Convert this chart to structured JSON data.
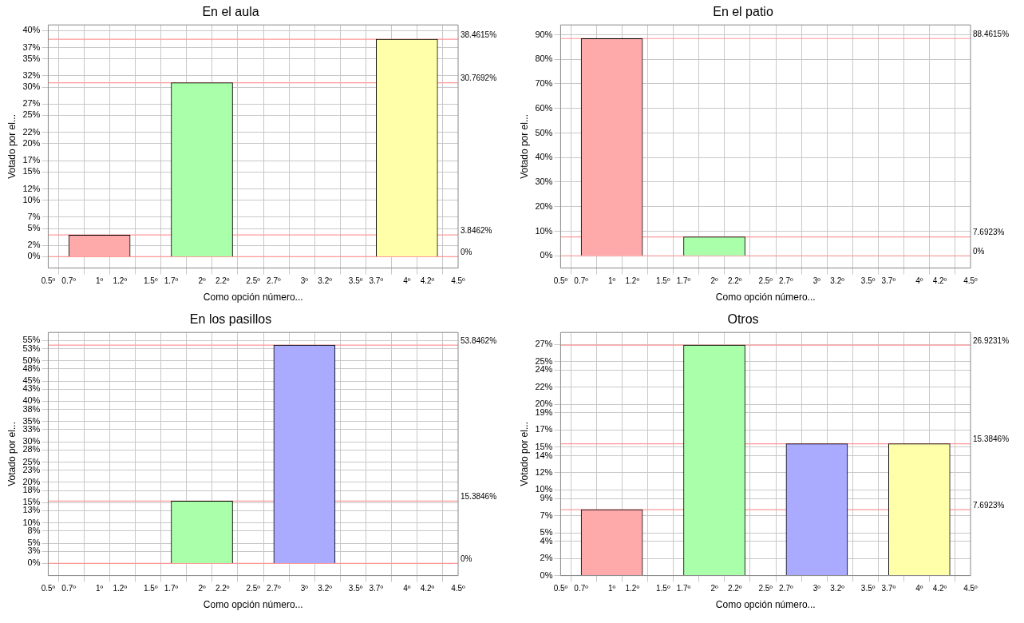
{
  "chart_data": [
    {
      "type": "bar",
      "title": "En el aula",
      "xlabel": "Como opción número...",
      "ylabel": "Votado por el...",
      "x": [
        1,
        2,
        3,
        4
      ],
      "values": [
        3.8462,
        30.7692,
        0,
        38.4615
      ],
      "colors": [
        "#ffaaaa",
        "#aaffaa",
        "#aaaaff",
        "#ffffaa"
      ],
      "xlim": [
        0.5,
        4.5
      ],
      "xticks": [
        {
          "value": 0.5,
          "label": "0.5º"
        },
        {
          "value": 0.7,
          "label": "0.7º"
        },
        {
          "value": 1,
          "label": "1º"
        },
        {
          "value": 1.2,
          "label": "1.2º"
        },
        {
          "value": 1.5,
          "label": "1.5º"
        },
        {
          "value": 1.7,
          "label": "1.7º"
        },
        {
          "value": 2,
          "label": "2º"
        },
        {
          "value": 2.2,
          "label": "2.2º"
        },
        {
          "value": 2.5,
          "label": "2.5º"
        },
        {
          "value": 2.7,
          "label": "2.7º"
        },
        {
          "value": 3,
          "label": "3º"
        },
        {
          "value": 3.2,
          "label": "3.2º"
        },
        {
          "value": 3.5,
          "label": "3.5º"
        },
        {
          "value": 3.7,
          "label": "3.7º"
        },
        {
          "value": 4,
          "label": "4º"
        },
        {
          "value": 4.2,
          "label": "4.2º"
        },
        {
          "value": 4.5,
          "label": "4.5º"
        }
      ],
      "ylim": [
        -2,
        41
      ],
      "yticks": [
        {
          "value": 0,
          "label": "0%"
        },
        {
          "value": 2,
          "label": "2%"
        },
        {
          "value": 5,
          "label": "5%"
        },
        {
          "value": 7,
          "label": "7%"
        },
        {
          "value": 10,
          "label": "10%"
        },
        {
          "value": 12,
          "label": "12%"
        },
        {
          "value": 15,
          "label": "15%"
        },
        {
          "value": 17,
          "label": "17%"
        },
        {
          "value": 20,
          "label": "20%"
        },
        {
          "value": 22,
          "label": "22%"
        },
        {
          "value": 25,
          "label": "25%"
        },
        {
          "value": 27,
          "label": "27%"
        },
        {
          "value": 30,
          "label": "30%"
        },
        {
          "value": 32,
          "label": "32%"
        },
        {
          "value": 35,
          "label": "35%"
        },
        {
          "value": 37,
          "label": "37%"
        },
        {
          "value": 40,
          "label": "40%"
        }
      ],
      "ref_lines": [
        {
          "axis": "y",
          "value": 38.4615,
          "label": "38.4615%",
          "color": "#ff9999"
        },
        {
          "axis": "y",
          "value": 30.7692,
          "label": "30.7692%",
          "color": "#ff9999"
        },
        {
          "axis": "y",
          "value": 3.8462,
          "label": "3.8462%",
          "color": "#ff9999"
        },
        {
          "axis": "y",
          "value": 0,
          "label": "0%",
          "color": "#ff9999"
        }
      ],
      "grid": true
    },
    {
      "type": "bar",
      "title": "En el patio",
      "xlabel": "Como opción número...",
      "ylabel": "Votado por el...",
      "x": [
        1,
        2,
        3,
        4
      ],
      "values": [
        88.4615,
        7.6923,
        0,
        0
      ],
      "colors": [
        "#ffaaaa",
        "#aaffaa",
        "#aaaaff",
        "#ffffaa"
      ],
      "xlim": [
        0.5,
        4.5
      ],
      "xticks": [
        {
          "value": 0.5,
          "label": "0.5º"
        },
        {
          "value": 0.7,
          "label": "0.7º"
        },
        {
          "value": 1,
          "label": "1º"
        },
        {
          "value": 1.2,
          "label": "1.2º"
        },
        {
          "value": 1.5,
          "label": "1.5º"
        },
        {
          "value": 1.7,
          "label": "1.7º"
        },
        {
          "value": 2,
          "label": "2º"
        },
        {
          "value": 2.2,
          "label": "2.2º"
        },
        {
          "value": 2.5,
          "label": "2.5º"
        },
        {
          "value": 2.7,
          "label": "2.7º"
        },
        {
          "value": 3,
          "label": "3º"
        },
        {
          "value": 3.2,
          "label": "3.2º"
        },
        {
          "value": 3.5,
          "label": "3.5º"
        },
        {
          "value": 3.7,
          "label": "3.7º"
        },
        {
          "value": 4,
          "label": "4º"
        },
        {
          "value": 4.2,
          "label": "4.2º"
        },
        {
          "value": 4.5,
          "label": "4.5º"
        }
      ],
      "ylim": [
        -5,
        94
      ],
      "yticks": [
        {
          "value": 0,
          "label": "0%"
        },
        {
          "value": 10,
          "label": "10%"
        },
        {
          "value": 20,
          "label": "20%"
        },
        {
          "value": 30,
          "label": "30%"
        },
        {
          "value": 40,
          "label": "40%"
        },
        {
          "value": 50,
          "label": "50%"
        },
        {
          "value": 60,
          "label": "60%"
        },
        {
          "value": 70,
          "label": "70%"
        },
        {
          "value": 80,
          "label": "80%"
        },
        {
          "value": 90,
          "label": "90%"
        }
      ],
      "ref_lines": [
        {
          "axis": "y",
          "value": 88.4615,
          "label": "88.4615%",
          "color": "#ff9999"
        },
        {
          "axis": "y",
          "value": 7.6923,
          "label": "7.6923%",
          "color": "#ff9999"
        },
        {
          "axis": "y",
          "value": 0,
          "label": "0%",
          "color": "#ff9999"
        }
      ],
      "grid": true
    },
    {
      "type": "bar",
      "title": "En los pasillos",
      "xlabel": "Como opción número...",
      "ylabel": "Votado por el...",
      "x": [
        1,
        2,
        3,
        4
      ],
      "values": [
        0,
        15.3846,
        53.8462,
        0
      ],
      "colors": [
        "#ffaaaa",
        "#aaffaa",
        "#aaaaff",
        "#ffffaa"
      ],
      "xlim": [
        0.5,
        4.5
      ],
      "xticks": [
        {
          "value": 0.5,
          "label": "0.5º"
        },
        {
          "value": 0.7,
          "label": "0.7º"
        },
        {
          "value": 1,
          "label": "1º"
        },
        {
          "value": 1.2,
          "label": "1.2º"
        },
        {
          "value": 1.5,
          "label": "1.5º"
        },
        {
          "value": 1.7,
          "label": "1.7º"
        },
        {
          "value": 2,
          "label": "2º"
        },
        {
          "value": 2.2,
          "label": "2.2º"
        },
        {
          "value": 2.5,
          "label": "2.5º"
        },
        {
          "value": 2.7,
          "label": "2.7º"
        },
        {
          "value": 3,
          "label": "3º"
        },
        {
          "value": 3.2,
          "label": "3.2º"
        },
        {
          "value": 3.5,
          "label": "3.5º"
        },
        {
          "value": 3.7,
          "label": "3.7º"
        },
        {
          "value": 4,
          "label": "4º"
        },
        {
          "value": 4.2,
          "label": "4.2º"
        },
        {
          "value": 4.5,
          "label": "4.5º"
        }
      ],
      "ylim": [
        -3,
        57
      ],
      "yticks": [
        {
          "value": 0,
          "label": "0%"
        },
        {
          "value": 3,
          "label": "3%"
        },
        {
          "value": 5,
          "label": "5%"
        },
        {
          "value": 8,
          "label": "8%"
        },
        {
          "value": 10,
          "label": "10%"
        },
        {
          "value": 13,
          "label": "13%"
        },
        {
          "value": 15,
          "label": "15%"
        },
        {
          "value": 18,
          "label": "18%"
        },
        {
          "value": 20,
          "label": "20%"
        },
        {
          "value": 23,
          "label": "23%"
        },
        {
          "value": 25,
          "label": "25%"
        },
        {
          "value": 28,
          "label": "28%"
        },
        {
          "value": 30,
          "label": "30%"
        },
        {
          "value": 33,
          "label": "33%"
        },
        {
          "value": 35,
          "label": "35%"
        },
        {
          "value": 38,
          "label": "38%"
        },
        {
          "value": 40,
          "label": "40%"
        },
        {
          "value": 43,
          "label": "43%"
        },
        {
          "value": 45,
          "label": "45%"
        },
        {
          "value": 48,
          "label": "48%"
        },
        {
          "value": 50,
          "label": "50%"
        },
        {
          "value": 53,
          "label": "53%"
        },
        {
          "value": 55,
          "label": "55%"
        }
      ],
      "ref_lines": [
        {
          "axis": "y",
          "value": 53.8462,
          "label": "53.8462%",
          "color": "#ff9999"
        },
        {
          "axis": "y",
          "value": 15.3846,
          "label": "15.3846%",
          "color": "#ff9999"
        },
        {
          "axis": "y",
          "value": 0,
          "label": "0%",
          "color": "#ff9999"
        }
      ],
      "grid": true
    },
    {
      "type": "bar",
      "title": "Otros",
      "xlabel": "Como opción número...",
      "ylabel": "Votado por el...",
      "x": [
        1,
        2,
        3,
        4
      ],
      "values": [
        7.6923,
        26.9231,
        15.3846,
        15.3846
      ],
      "colors": [
        "#ffaaaa",
        "#aaffaa",
        "#aaaaff",
        "#ffffaa"
      ],
      "xlim": [
        0.5,
        4.5
      ],
      "xticks": [
        {
          "value": 0.5,
          "label": "0.5º"
        },
        {
          "value": 0.7,
          "label": "0.7º"
        },
        {
          "value": 1,
          "label": "1º"
        },
        {
          "value": 1.2,
          "label": "1.2º"
        },
        {
          "value": 1.5,
          "label": "1.5º"
        },
        {
          "value": 1.7,
          "label": "1.7º"
        },
        {
          "value": 2,
          "label": "2º"
        },
        {
          "value": 2.2,
          "label": "2.2º"
        },
        {
          "value": 2.5,
          "label": "2.5º"
        },
        {
          "value": 2.7,
          "label": "2.7º"
        },
        {
          "value": 3,
          "label": "3º"
        },
        {
          "value": 3.2,
          "label": "3.2º"
        },
        {
          "value": 3.5,
          "label": "3.5º"
        },
        {
          "value": 3.7,
          "label": "3.7º"
        },
        {
          "value": 4,
          "label": "4º"
        },
        {
          "value": 4.2,
          "label": "4.2º"
        },
        {
          "value": 4.5,
          "label": "4.5º"
        }
      ],
      "ylim": [
        0,
        28.4
      ],
      "yticks": [
        {
          "value": 0,
          "label": "0%"
        },
        {
          "value": 2,
          "label": "2%"
        },
        {
          "value": 4,
          "label": "4%"
        },
        {
          "value": 5,
          "label": "5%"
        },
        {
          "value": 7,
          "label": "7%"
        },
        {
          "value": 9,
          "label": "9%"
        },
        {
          "value": 10,
          "label": "10%"
        },
        {
          "value": 12,
          "label": "12%"
        },
        {
          "value": 14,
          "label": "14%"
        },
        {
          "value": 15,
          "label": "15%"
        },
        {
          "value": 17,
          "label": "17%"
        },
        {
          "value": 19,
          "label": "19%"
        },
        {
          "value": 20,
          "label": "20%"
        },
        {
          "value": 22,
          "label": "22%"
        },
        {
          "value": 24,
          "label": "24%"
        },
        {
          "value": 25,
          "label": "25%"
        },
        {
          "value": 27,
          "label": "27%"
        }
      ],
      "ref_lines": [
        {
          "axis": "y",
          "value": 26.9231,
          "label": "26.9231%",
          "color": "#ff9999"
        },
        {
          "axis": "y",
          "value": 15.3846,
          "label": "15.3846%",
          "color": "#ff9999"
        },
        {
          "axis": "y",
          "value": 7.6923,
          "label": "7.6923%",
          "color": "#ff9999"
        }
      ],
      "grid": true
    }
  ]
}
